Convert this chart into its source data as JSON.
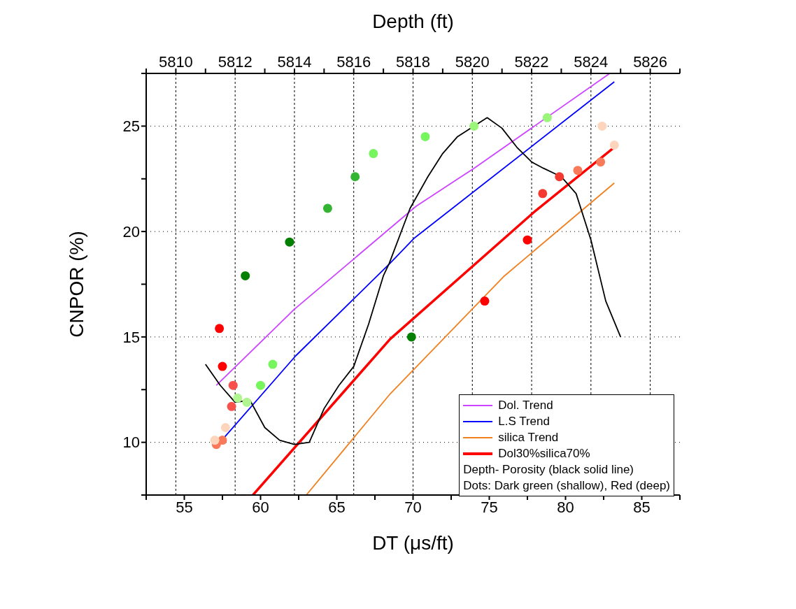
{
  "chart_data": {
    "type": "scatter",
    "xlabel": "DT (μs/ft)",
    "ylabel": "CNPOR (%)",
    "x2label": "Depth (ft)",
    "xlim": [
      52.5,
      87.5
    ],
    "xticks": [
      {
        "value": 52.5,
        "label": null
      },
      55,
      {
        "value": 57.5,
        "label": null
      },
      60,
      {
        "value": 62.5,
        "label": null
      },
      65,
      {
        "value": 67.5,
        "label": null
      },
      70,
      {
        "value": 72.5,
        "label": null
      },
      75,
      {
        "value": 77.5,
        "label": null
      },
      80,
      {
        "value": 82.5,
        "label": null
      },
      85,
      {
        "value": 87.5,
        "label": null
      }
    ],
    "x2lim": [
      5809,
      5827
    ],
    "x2ticks": [
      {
        "value": 5809,
        "label": null
      },
      5810,
      {
        "value": 5811,
        "label": null
      },
      5812,
      {
        "value": 5813,
        "label": null
      },
      5814,
      {
        "value": 5815,
        "label": null
      },
      5816,
      {
        "value": 5817,
        "label": null
      },
      5818,
      {
        "value": 5819,
        "label": null
      },
      5820,
      {
        "value": 5821,
        "label": null
      },
      5822,
      {
        "value": 5823,
        "label": null
      },
      5824,
      {
        "value": 5825,
        "label": null
      },
      5826,
      {
        "value": 5827,
        "label": null
      }
    ],
    "ylim": [
      7.5,
      27.5
    ],
    "yticks": [
      {
        "value": 7.5,
        "label": null
      },
      10,
      {
        "value": 12.5,
        "label": null
      },
      15,
      {
        "value": 17.5,
        "label": null
      },
      20,
      {
        "value": 22.5,
        "label": null
      },
      25,
      {
        "value": 27.5,
        "label": null
      }
    ],
    "grid": true,
    "legend": "bottom right",
    "line_style": "solid",
    "annotations": [
      "Depth- Porosity (black solid line)",
      "Dots: Dark green (shallow), Red (deep)"
    ],
    "series": [
      {
        "name": "Dol. Trend",
        "type": "line",
        "marker": "none",
        "color": "#cc44ff",
        "x": [
          57.1,
          62.2,
          70.2,
          74.0,
          82.9
        ],
        "values": [
          12.7,
          16.3,
          21.2,
          23.0,
          27.5
        ]
      },
      {
        "name": "L.S Trend",
        "type": "line",
        "marker": "none",
        "color": "#0000ff",
        "x": [
          57.1,
          62.3,
          68.5,
          70.1,
          83.2
        ],
        "values": [
          9.8,
          14.1,
          18.5,
          19.7,
          27.1
        ]
      },
      {
        "name": "silica Trend",
        "type": "line",
        "marker": "none",
        "color": "#f08020",
        "x": [
          63.0,
          68.5,
          76.0,
          83.2
        ],
        "values": [
          7.5,
          12.3,
          17.9,
          22.3
        ]
      },
      {
        "name": "Dol30%silica70%",
        "type": "line",
        "marker": "none",
        "color": "#ff0000",
        "x": [
          59.5,
          68.5,
          77.9,
          83.2
        ],
        "values": [
          7.5,
          14.9,
          20.9,
          24.0
        ]
      },
      {
        "type": "line",
        "marker": "none",
        "axis": "x2",
        "color": "#000000",
        "x": [
          5811.0,
          5811.5,
          5812.0,
          5812.5,
          5813.0,
          5813.5,
          5814.0,
          5814.5,
          5815.0,
          5815.5,
          5816.0,
          5816.5,
          5817.0,
          5817.2,
          5817.9,
          5818.5,
          5819.0,
          5819.5,
          5820.5,
          5821.0,
          5821.5,
          5822.0,
          5822.4,
          5823.0,
          5823.5,
          5824.0,
          5824.5,
          5825.0
        ],
        "values": [
          13.7,
          12.7,
          11.9,
          12.0,
          10.7,
          10.1,
          9.9,
          10.0,
          11.6,
          12.7,
          13.6,
          15.6,
          17.9,
          18.5,
          21.1,
          22.6,
          23.7,
          24.5,
          25.4,
          24.9,
          24.0,
          23.3,
          23.0,
          22.6,
          21.8,
          19.6,
          16.7,
          15.0
        ]
      },
      {
        "marker": "circle",
        "x": [
          59.0,
          61.9,
          69.9,
          64.4,
          66.2,
          60.8,
          60.0,
          58.5,
          59.1,
          67.4,
          70.8,
          74.0,
          78.8,
          57.3,
          57.5,
          77.5,
          74.7,
          78.5,
          79.6,
          58.2,
          58.1,
          80.8,
          82.3,
          57.1,
          57.5,
          57.0,
          57.7,
          82.4,
          83.2
        ],
        "values": [
          17.9,
          19.5,
          15.0,
          21.1,
          22.6,
          13.7,
          12.7,
          12.1,
          11.9,
          23.7,
          24.5,
          25.0,
          25.4,
          15.4,
          13.6,
          19.6,
          16.7,
          21.8,
          22.6,
          12.7,
          11.7,
          22.9,
          23.3,
          9.9,
          10.1,
          10.1,
          10.7,
          25.0,
          24.1
        ],
        "colors": [
          "#007f00",
          "#007f00",
          "#007f00",
          "#33b533",
          "#33b533",
          "#77f55f",
          "#77f55f",
          "#b0f590",
          "#b0f590",
          "#77f55f",
          "#77f55f",
          "#9bf57a",
          "#9bf57a",
          "#ff0000",
          "#ff0000",
          "#ff0000",
          "#ff0000",
          "#f43a30",
          "#f43a30",
          "#f8504a",
          "#f8504a",
          "#f87a5a",
          "#f87a5a",
          "#f87a5a",
          "#f87a5a",
          "#fdd5bc",
          "#fdd5bc",
          "#fdd5bc",
          "#fdd5bc"
        ]
      }
    ]
  }
}
